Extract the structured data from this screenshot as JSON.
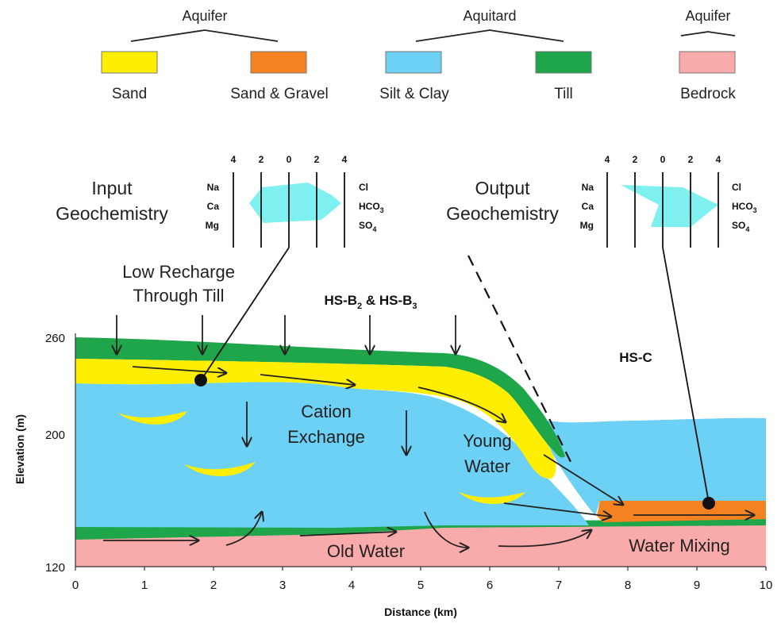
{
  "legend": {
    "groups": [
      {
        "label": "Aquifer"
      },
      {
        "label": "Aquitard"
      },
      {
        "label": "Aquifer"
      }
    ],
    "items": [
      {
        "label": "Sand",
        "color": "#FFEE00"
      },
      {
        "label": "Sand & Gravel",
        "color": "#F58220"
      },
      {
        "label": "Silt & Clay",
        "color": "#6DD0F5"
      },
      {
        "label": "Till",
        "color": "#1FA64A"
      },
      {
        "label": "Bedrock",
        "color": "#F9AAAA"
      }
    ]
  },
  "input_geochem": {
    "title_line1": "Input",
    "title_line2": "Geochemistry",
    "scale": [
      "4",
      "2",
      "0",
      "2",
      "4"
    ],
    "left_ions": [
      "Na",
      "Ca",
      "Mg"
    ],
    "right_ions": [
      {
        "base": "Cl",
        "sub": ""
      },
      {
        "base": "HCO",
        "sub": "3"
      },
      {
        "base": "SO",
        "sub": "4"
      }
    ]
  },
  "output_geochem": {
    "title_line1": "Output",
    "title_line2": "Geochemistry",
    "scale": [
      "4",
      "2",
      "0",
      "2",
      "4"
    ],
    "left_ions": [
      "Na",
      "Ca",
      "Mg"
    ],
    "right_ions": [
      {
        "base": "Cl",
        "sub": ""
      },
      {
        "base": "HCO",
        "sub": "3"
      },
      {
        "base": "SO",
        "sub": "4"
      }
    ]
  },
  "labels": {
    "low_recharge_1": "Low Recharge",
    "low_recharge_2": "Through Till",
    "hs_b_prefix": "HS-B",
    "hs_b_sub1": "2",
    "hs_b_mid": " & HS-B",
    "hs_b_sub2": "3",
    "hs_c": "HS-C",
    "cation_1": "Cation",
    "cation_2": "Exchange",
    "young_1": "Young",
    "young_2": "Water",
    "old_water": "Old Water",
    "water_mixing": "Water Mixing"
  },
  "axes": {
    "xlabel": "Distance (km)",
    "ylabel": "Elevation (m)",
    "x_ticks": [
      "0",
      "1",
      "2",
      "3",
      "4",
      "5",
      "6",
      "7",
      "8",
      "9",
      "10"
    ],
    "y_ticks": [
      "260",
      "200",
      "120"
    ]
  }
}
